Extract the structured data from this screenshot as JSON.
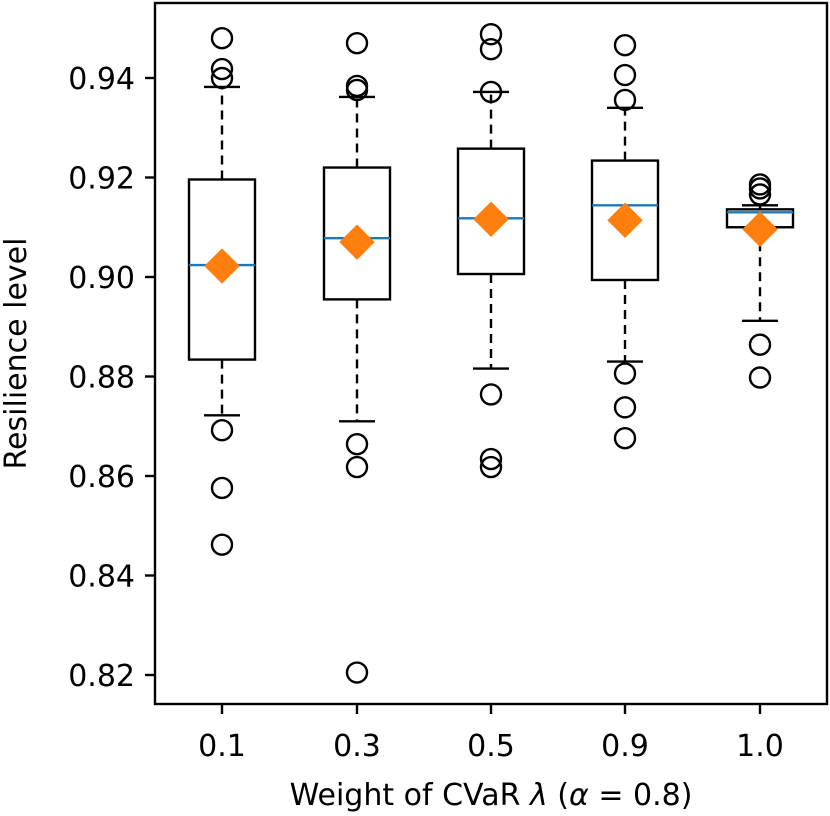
{
  "chart_data": {
    "type": "box",
    "xlabel": "Weight of CVaR λ (α = 0.8)",
    "xlabel_parts": {
      "prefix": "Weight of CVaR ",
      "lambda": "λ",
      "open": " (",
      "alpha": "α",
      "rest": " = 0.8)"
    },
    "ylabel": "Resilience level",
    "ylim": [
      0.815,
      0.955
    ],
    "yticks": [
      0.82,
      0.84,
      0.86,
      0.88,
      0.9,
      0.92,
      0.94
    ],
    "ytick_labels": [
      "0.82",
      "0.84",
      "0.86",
      "0.88",
      "0.90",
      "0.92",
      "0.94"
    ],
    "categories": [
      "0.1",
      "0.3",
      "0.5",
      "0.9",
      "1.0"
    ],
    "boxes": [
      {
        "label": "0.1",
        "whisker_low": 0.8722,
        "q1": 0.8834,
        "median": 0.9024,
        "q3": 0.9196,
        "whisker_high": 0.9382,
        "mean": 0.9022,
        "outliers": [
          0.948,
          0.9418,
          0.94,
          0.8692,
          0.8576,
          0.8462
        ]
      },
      {
        "label": "0.3",
        "whisker_low": 0.871,
        "q1": 0.8955,
        "median": 0.9078,
        "q3": 0.922,
        "whisker_high": 0.9362,
        "mean": 0.907,
        "outliers": [
          0.947,
          0.9384,
          0.9376,
          0.8664,
          0.8618,
          0.8205
        ]
      },
      {
        "label": "0.5",
        "whisker_low": 0.8816,
        "q1": 0.9006,
        "median": 0.9118,
        "q3": 0.9258,
        "whisker_high": 0.9372,
        "mean": 0.9116,
        "outliers": [
          0.9488,
          0.9458,
          0.9372,
          0.8764,
          0.8634,
          0.8618
        ]
      },
      {
        "label": "0.9",
        "whisker_low": 0.883,
        "q1": 0.8994,
        "median": 0.9144,
        "q3": 0.9234,
        "whisker_high": 0.934,
        "mean": 0.9114,
        "outliers": [
          0.9466,
          0.9406,
          0.9356,
          0.8806,
          0.8738,
          0.8676
        ]
      },
      {
        "label": "1.0",
        "whisker_low": 0.8912,
        "q1": 0.91,
        "median": 0.913,
        "q3": 0.9136,
        "whisker_high": 0.9144,
        "mean": 0.9096,
        "outliers": [
          0.9186,
          0.9178,
          0.9166,
          0.8864,
          0.8798
        ]
      }
    ],
    "colors": {
      "box": "#000000",
      "median": "#1f77b4",
      "mean": "#ff7f0e",
      "outlier": "#000000"
    }
  }
}
